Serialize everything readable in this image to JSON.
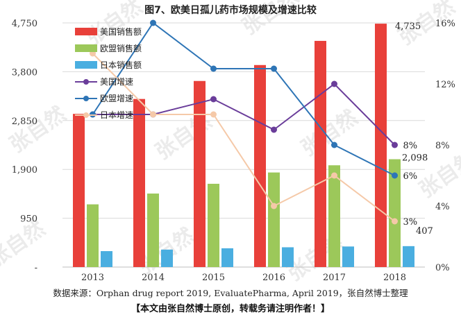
{
  "watermark": "张自然",
  "source_text": "数据来源：Orphan drug report 2019, EvaluatePharma, April 2019，张自然博士整理",
  "notice_text": "【本文由张自然博士原创，转载务请注明作者！】",
  "chart_data": {
    "type": "bar+line",
    "title": "图7、欧美日孤儿药市场规模及增速比较",
    "categories": [
      "2013",
      "2014",
      "2015",
      "2016",
      "2017",
      "2018"
    ],
    "left_axis": {
      "min": 0,
      "max": 4750,
      "ticks": [
        0,
        950,
        1900,
        2850,
        3800,
        4750
      ],
      "tick_labels": [
        "-",
        "950",
        "1,900",
        "2,850",
        "3,800",
        "4,750"
      ]
    },
    "right_axis": {
      "min": 0,
      "max": 16,
      "ticks": [
        0,
        4,
        8,
        12,
        16
      ],
      "tick_labels": [
        "0%",
        "4%",
        "8%",
        "12%",
        "16%"
      ]
    },
    "bar_series": [
      {
        "name": "美国销售额",
        "color": "#e8403a",
        "values": [
          2980,
          3270,
          3620,
          3930,
          4400,
          4735
        ]
      },
      {
        "name": "欧盟销售额",
        "color": "#9cc85a",
        "values": [
          1220,
          1430,
          1620,
          1840,
          1980,
          2098
        ]
      },
      {
        "name": "日本销售额",
        "color": "#4aaee0",
        "values": [
          310,
          340,
          365,
          385,
          400,
          407
        ]
      }
    ],
    "line_series": [
      {
        "name": "美国增速",
        "color": "#6a3d9a",
        "values": [
          10,
          10,
          11,
          9,
          12,
          8
        ]
      },
      {
        "name": "欧盟增速",
        "color": "#2e75b6",
        "values": [
          10,
          16,
          13,
          13,
          8,
          6
        ]
      },
      {
        "name": "日本增速",
        "color": "#f5c9a8",
        "values": [
          14,
          10,
          10,
          4,
          6,
          3
        ]
      }
    ],
    "data_labels": [
      {
        "text": "4,735",
        "series": "美国销售额",
        "index": 5
      },
      {
        "text": "2,098",
        "series": "欧盟销售额",
        "index": 5
      },
      {
        "text": "407",
        "series": "日本销售额",
        "index": 5
      },
      {
        "text": "8%",
        "series": "美国增速",
        "index": 5
      },
      {
        "text": "6%",
        "series": "欧盟增速",
        "index": 5
      },
      {
        "text": "3%",
        "series": "日本增速",
        "index": 5
      }
    ],
    "legend_position": "top-left"
  }
}
